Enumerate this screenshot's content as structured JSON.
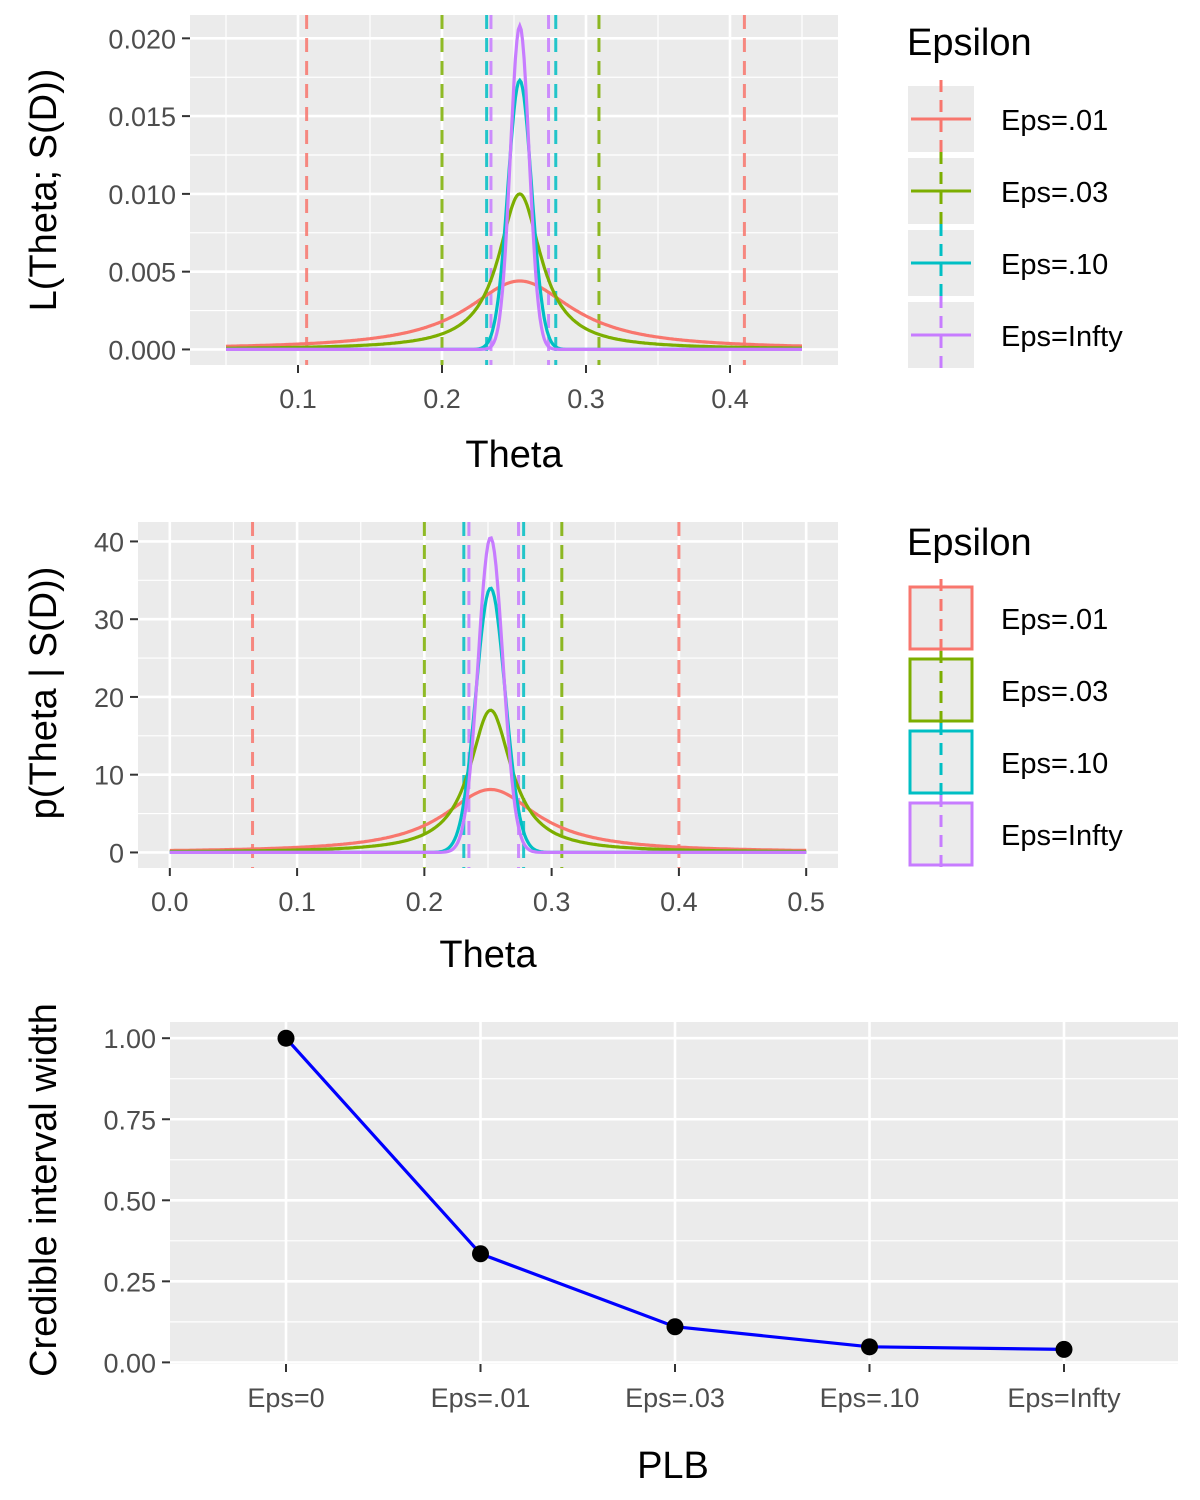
{
  "chart_data": [
    {
      "type": "line",
      "title": "",
      "xlabel": "Theta",
      "ylabel": "L(Theta; S(D))",
      "xlim": [
        0.025,
        0.475
      ],
      "ylim": [
        -0.001,
        0.0215
      ],
      "xticks": [
        0.1,
        0.2,
        0.3,
        0.4
      ],
      "xtick_labels": [
        "0.1",
        "0.2",
        "0.3",
        "0.4"
      ],
      "yticks": [
        0,
        0.005,
        0.01,
        0.015,
        0.02
      ],
      "ytick_labels": [
        "0.000",
        "0.005",
        "0.010",
        "0.015",
        "0.020"
      ],
      "x_range": [
        0.05,
        0.45
      ],
      "center": 0.254,
      "legend": {
        "title": "Epsilon",
        "style": "line",
        "position": "right"
      },
      "series": [
        {
          "name": "Eps=.01",
          "color": "#F8766D",
          "peak": 0.0044,
          "width": 0.045,
          "shape": "cauchy",
          "interval": [
            0.106,
            0.41
          ]
        },
        {
          "name": "Eps=.03",
          "color": "#7CAE00",
          "peak": 0.01,
          "width": 0.018,
          "shape": "cauchy",
          "interval": [
            0.2,
            0.309
          ]
        },
        {
          "name": "Eps=.10",
          "color": "#00BFC4",
          "peak": 0.0173,
          "width": 0.0082,
          "shape": "gauss",
          "interval": [
            0.231,
            0.279
          ]
        },
        {
          "name": "Eps=Infty",
          "color": "#C77CFF",
          "peak": 0.0208,
          "width": 0.0065,
          "shape": "gauss",
          "interval": [
            0.234,
            0.274
          ]
        }
      ]
    },
    {
      "type": "line",
      "title": "",
      "xlabel": "Theta",
      "ylabel": "p(Theta | S(D))",
      "xlim": [
        -0.025,
        0.525
      ],
      "ylim": [
        -2,
        42.5
      ],
      "xticks": [
        0,
        0.1,
        0.2,
        0.3,
        0.4,
        0.5
      ],
      "xtick_labels": [
        "0.0",
        "0.1",
        "0.2",
        "0.3",
        "0.4",
        "0.5"
      ],
      "yticks": [
        0,
        10,
        20,
        30,
        40
      ],
      "ytick_labels": [
        "0",
        "10",
        "20",
        "30",
        "40"
      ],
      "x_range": [
        0,
        0.5
      ],
      "center": 0.252,
      "legend": {
        "title": "Epsilon",
        "style": "box",
        "position": "right"
      },
      "series": [
        {
          "name": "Eps=.01",
          "color": "#F8766D",
          "peak": 8.1,
          "width": 0.045,
          "shape": "cauchy",
          "interval": [
            0.065,
            0.4
          ]
        },
        {
          "name": "Eps=.03",
          "color": "#7CAE00",
          "peak": 18.3,
          "width": 0.02,
          "shape": "cauchy",
          "interval": [
            0.2,
            0.308
          ]
        },
        {
          "name": "Eps=.10",
          "color": "#00BFC4",
          "peak": 34,
          "width": 0.0115,
          "shape": "gauss",
          "interval": [
            0.231,
            0.278
          ]
        },
        {
          "name": "Eps=Infty",
          "color": "#C77CFF",
          "peak": 40.5,
          "width": 0.0098,
          "shape": "gauss",
          "interval": [
            0.235,
            0.274
          ]
        }
      ]
    },
    {
      "type": "line",
      "title": "",
      "xlabel": "PLB",
      "ylabel": "Credible interval width",
      "categories": [
        "Eps=0",
        "Eps=.01",
        "Eps=.03",
        "Eps=.10",
        "Eps=Infty"
      ],
      "values": [
        1.0,
        0.335,
        0.11,
        0.048,
        0.04
      ],
      "ylim": [
        -0.005,
        1.05
      ],
      "yticks": [
        0,
        0.25,
        0.5,
        0.75,
        1.0
      ],
      "ytick_labels": [
        "0.00",
        "0.25",
        "0.50",
        "0.75",
        "1.00"
      ],
      "line_color": "#0000FF",
      "point_color": "#000000"
    }
  ]
}
